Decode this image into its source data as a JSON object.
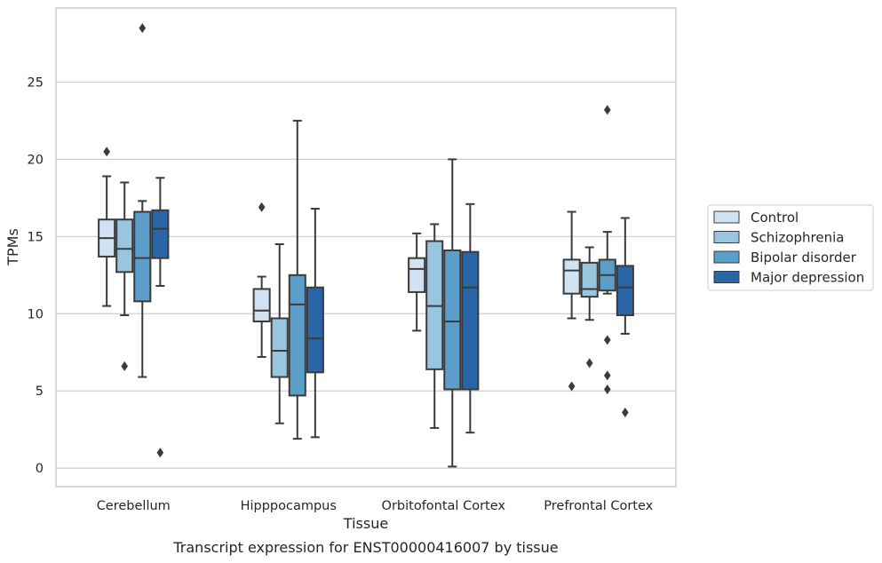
{
  "chart_data": {
    "type": "box",
    "xlabel": "Tissue",
    "ylabel": "TPMs",
    "caption": "Transcript expression for ENST00000416007 by tissue",
    "ylim": [
      -1.2,
      29.8
    ],
    "yticks": [
      0,
      5,
      10,
      15,
      20,
      25
    ],
    "grid": "horizontal",
    "legend_placement": "right",
    "categories": [
      "Cerebellum",
      "Hipppocampus",
      "Orbitofontal Cortex",
      "Prefrontal Cortex"
    ],
    "series": [
      {
        "name": "Control",
        "color": "#d1e2f2",
        "boxes": [
          {
            "whislo": 10.5,
            "q1": 13.7,
            "med": 14.9,
            "q3": 16.1,
            "whishi": 18.9,
            "fliers": [
              20.5
            ]
          },
          {
            "whislo": 7.2,
            "q1": 9.5,
            "med": 10.2,
            "q3": 11.6,
            "whishi": 12.4,
            "fliers": [
              16.9
            ]
          },
          {
            "whislo": 8.9,
            "q1": 11.4,
            "med": 12.9,
            "q3": 13.6,
            "whishi": 15.2,
            "fliers": []
          },
          {
            "whislo": 9.7,
            "q1": 11.3,
            "med": 12.8,
            "q3": 13.5,
            "whishi": 16.6,
            "fliers": [
              5.3
            ]
          }
        ]
      },
      {
        "name": "Schizophrenia",
        "color": "#9ac5df",
        "boxes": [
          {
            "whislo": 9.9,
            "q1": 12.7,
            "med": 14.2,
            "q3": 16.1,
            "whishi": 18.5,
            "fliers": [
              6.6
            ]
          },
          {
            "whislo": 2.9,
            "q1": 5.9,
            "med": 7.6,
            "q3": 9.7,
            "whishi": 14.5,
            "fliers": []
          },
          {
            "whislo": 2.6,
            "q1": 6.4,
            "med": 10.5,
            "q3": 14.7,
            "whishi": 15.8,
            "fliers": []
          },
          {
            "whislo": 9.6,
            "q1": 11.1,
            "med": 11.6,
            "q3": 13.3,
            "whishi": 14.3,
            "fliers": [
              6.8
            ]
          }
        ]
      },
      {
        "name": "Bipolar disorder",
        "color": "#5b9ec9",
        "boxes": [
          {
            "whislo": 5.9,
            "q1": 10.8,
            "med": 13.6,
            "q3": 16.6,
            "whishi": 17.3,
            "fliers": [
              28.5
            ]
          },
          {
            "whislo": 1.9,
            "q1": 4.7,
            "med": 10.6,
            "q3": 12.5,
            "whishi": 22.5,
            "fliers": []
          },
          {
            "whislo": 0.1,
            "q1": 5.1,
            "med": 9.5,
            "q3": 14.1,
            "whishi": 20.0,
            "fliers": []
          },
          {
            "whislo": 11.3,
            "q1": 11.5,
            "med": 12.5,
            "q3": 13.5,
            "whishi": 15.3,
            "fliers": [
              23.2,
              8.3,
              6.0,
              5.1
            ]
          }
        ]
      },
      {
        "name": "Major depression",
        "color": "#2866a8",
        "boxes": [
          {
            "whislo": 11.8,
            "q1": 13.6,
            "med": 15.5,
            "q3": 16.7,
            "whishi": 18.8,
            "fliers": [
              1.0
            ]
          },
          {
            "whislo": 2.0,
            "q1": 6.2,
            "med": 8.4,
            "q3": 11.7,
            "whishi": 16.8,
            "fliers": []
          },
          {
            "whislo": 2.3,
            "q1": 5.1,
            "med": 11.7,
            "q3": 14.0,
            "whishi": 17.1,
            "fliers": []
          },
          {
            "whislo": 8.7,
            "q1": 9.9,
            "med": 11.7,
            "q3": 13.1,
            "whishi": 16.2,
            "fliers": [
              3.6
            ]
          }
        ]
      }
    ]
  }
}
